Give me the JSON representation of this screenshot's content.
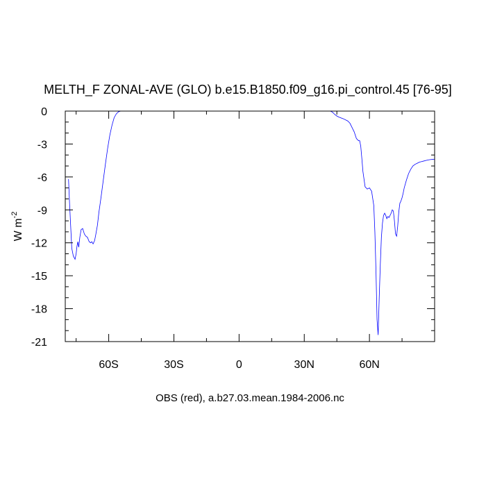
{
  "chart_data": {
    "type": "line",
    "title": "MELTH_F ZONAL-AVE (GLO) b.e15.B1850.f09_g16.pi_control.45 [76-95]",
    "xlabel": "OBS (red), a.b27.03.mean.1984-2006.nc",
    "ylabel": "W m",
    "ylabel_sup": "-2",
    "xlim": [
      -80,
      90
    ],
    "ylim": [
      -21,
      0
    ],
    "x_ticks": [
      -60,
      -30,
      0,
      30,
      60
    ],
    "x_tick_labels": [
      "60S",
      "30S",
      "0",
      "30N",
      "60N"
    ],
    "y_ticks": [
      0,
      -3,
      -6,
      -9,
      -12,
      -15,
      -18,
      -21
    ],
    "y_tick_labels": [
      "0",
      "-3",
      "-6",
      "-9",
      "-12",
      "-15",
      "-18",
      "-21"
    ],
    "grid": false,
    "series": [
      {
        "color": "#0000ff",
        "x": [
          -78.5,
          -78,
          -77.5,
          -77,
          -76.3,
          -75.5,
          -75,
          -74.6,
          -74.2,
          -73.8,
          -73.3,
          -72.7,
          -72,
          -71.2,
          -70.5,
          -69.8,
          -69,
          -68.3,
          -67.8,
          -67.2,
          -66.5,
          -66,
          -65.2,
          -64.5,
          -63.5,
          -62.5,
          -61.5,
          -60.5,
          -59.5,
          -58.5,
          -57.5,
          -56.5,
          -55.5,
          -54.5,
          -53.5,
          -52.5,
          -51.5,
          -50.5,
          -49.5,
          -48.5,
          42,
          43,
          44,
          45,
          46,
          48,
          50,
          51,
          52,
          53,
          54,
          55,
          55.5,
          56,
          56.5,
          57,
          58,
          59,
          60,
          61,
          62,
          62.5,
          63,
          63.5,
          64,
          64.5,
          65,
          65.5,
          66,
          66.5,
          67,
          67.5,
          68,
          68.5,
          69,
          69.5,
          70,
          70.5,
          71,
          71.5,
          72,
          72.5,
          73,
          73.5,
          74,
          74.5,
          75,
          75.5,
          76,
          77,
          78,
          79,
          80,
          81,
          82,
          83,
          84,
          85,
          86,
          87,
          88,
          89,
          90
        ],
        "y": [
          -6.2,
          -8.5,
          -10.5,
          -12.5,
          -13.2,
          -13.5,
          -13.0,
          -12.3,
          -11.9,
          -12.4,
          -11.5,
          -10.8,
          -10.7,
          -11.2,
          -11.4,
          -11.5,
          -11.9,
          -12.0,
          -11.9,
          -12.1,
          -11.8,
          -11.3,
          -10.4,
          -9.2,
          -7.8,
          -6.3,
          -4.8,
          -3.4,
          -2.2,
          -1.3,
          -0.6,
          -0.25,
          -0.06,
          0,
          0,
          0,
          0,
          0,
          0,
          0,
          0,
          -0.1,
          -0.3,
          -0.45,
          -0.55,
          -0.7,
          -0.9,
          -1.1,
          -1.5,
          -1.9,
          -2.5,
          -2.7,
          -2.7,
          -3.2,
          -4.3,
          -5.5,
          -6.9,
          -7.1,
          -7.0,
          -7.3,
          -8.6,
          -11.0,
          -14.5,
          -19.0,
          -20.4,
          -17.0,
          -14.0,
          -11.5,
          -10.2,
          -9.5,
          -9.3,
          -9.5,
          -9.8,
          -9.6,
          -9.7,
          -9.5,
          -9.3,
          -9.0,
          -9.1,
          -10.0,
          -11.2,
          -11.4,
          -10.5,
          -9.2,
          -8.4,
          -8.2,
          -7.9,
          -7.5,
          -7.0,
          -6.3,
          -5.7,
          -5.3,
          -5.0,
          -4.85,
          -4.75,
          -4.65,
          -4.6,
          -4.55,
          -4.5,
          -4.45,
          -4.42,
          -4.4,
          -4.38
        ]
      },
      {
        "color": "#ff0000",
        "x": [
          -80,
          90
        ],
        "y": [
          0,
          0
        ]
      }
    ]
  }
}
